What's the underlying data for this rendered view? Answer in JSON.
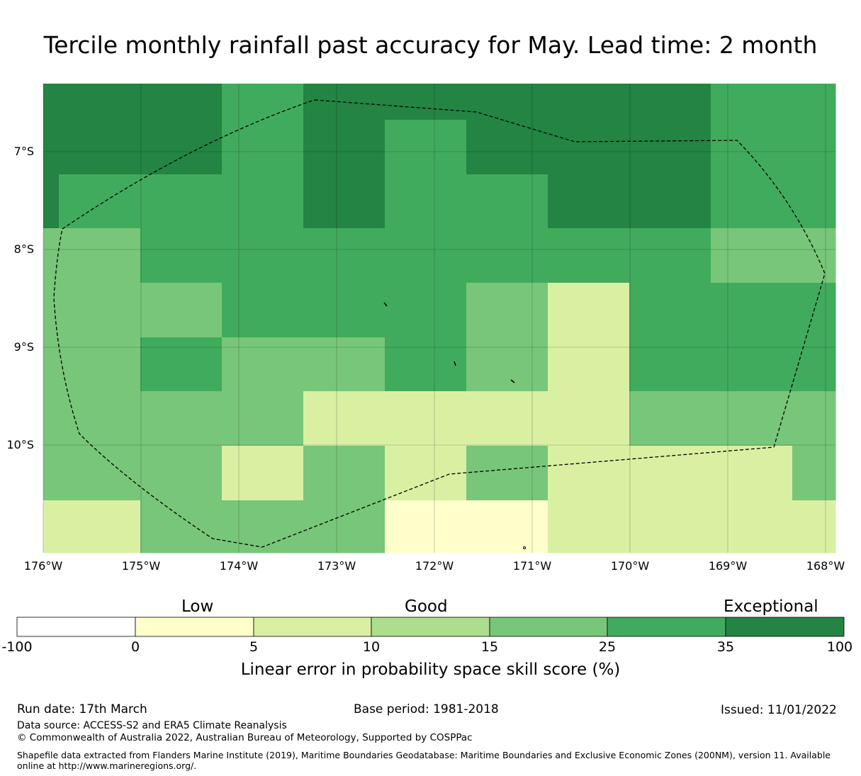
{
  "title": "Tercile monthly rainfall past accuracy for May. Lead time: 2 month",
  "map": {
    "lat_labels": [
      "7°S",
      "8°S",
      "9°S",
      "10°S"
    ],
    "lon_labels": [
      "176°W",
      "175°W",
      "174°W",
      "173°W",
      "172°W",
      "171°W",
      "170°W",
      "169°W",
      "168°W"
    ],
    "skill_grid": [
      [
        "35",
        "35",
        "25",
        "35",
        "35",
        "35",
        "35",
        "35",
        "25",
        "25"
      ],
      [
        "35",
        "35",
        "25",
        "35",
        "25",
        "35",
        "35",
        "35",
        "25",
        "25"
      ],
      [
        "25",
        "25",
        "25",
        "35",
        "25",
        "25",
        "35",
        "35",
        "25",
        "25"
      ],
      [
        "15",
        "25",
        "25",
        "25",
        "25",
        "25",
        "25",
        "25",
        "15",
        "15"
      ],
      [
        "15",
        "15",
        "25",
        "25",
        "25",
        "15",
        "5",
        "25",
        "25",
        "25"
      ],
      [
        "15",
        "25",
        "15",
        "15",
        "25",
        "15",
        "5",
        "25",
        "25",
        "25"
      ],
      [
        "15",
        "15",
        "15",
        "5",
        "5",
        "5",
        "5",
        "15",
        "15",
        "15"
      ],
      [
        "15",
        "15",
        "5",
        "15",
        "5",
        "15",
        "5",
        "5",
        "5",
        "15"
      ],
      [
        "5",
        "15",
        "15",
        "15",
        "0",
        "0",
        "5",
        "5",
        "5",
        "5"
      ]
    ]
  },
  "colorbar": {
    "categories": [
      "Low",
      "Good",
      "Exceptional"
    ],
    "ticks": [
      "-100",
      "0",
      "5",
      "10",
      "15",
      "25",
      "35",
      "100"
    ],
    "colors": [
      "#ffffff",
      "#ffffcc",
      "#d9f0a3",
      "#addd8e",
      "#78c679",
      "#41ab5d",
      "#238443"
    ],
    "label": "Linear error in probability space skill score (%)"
  },
  "footer": {
    "run_date": "Run date: 17th March",
    "base_period": "Base period: 1981-2018",
    "issued": "Issued: 11/01/2022",
    "data_source": "Data source: ACCESS-S2 and ERA5 Climate Reanalysis",
    "copyright": "© Commonwealth of Australia 2022, Australian Bureau of Meteorology, Supported by COSPPac",
    "shapefile": "Shapefile data extracted from Flanders Marine Institute (2019), Maritime Boundaries Geodatabase: Maritime Boundaries and Exclusive Economic Zones (200NM), version 11. Available online at http://www.marineregions.org/."
  }
}
